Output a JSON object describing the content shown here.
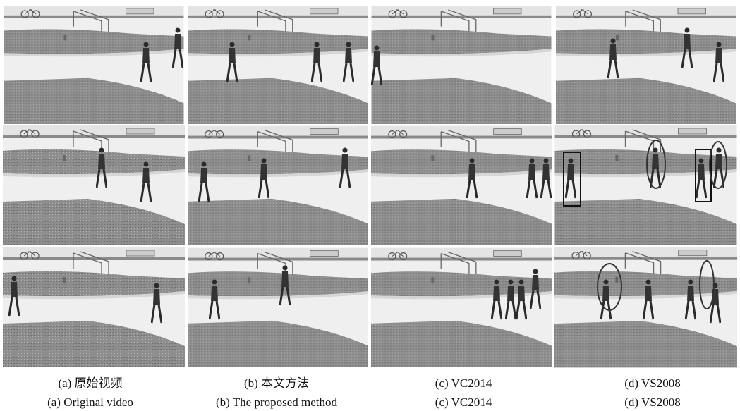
{
  "captions": [
    {
      "chinese": "(a) 原始视频",
      "english": "(a) Original video"
    },
    {
      "chinese": "(b) 本文方法",
      "english": "(b) The proposed method"
    },
    {
      "chinese": "(c) VC2014",
      "english": "(c) VC2014"
    },
    {
      "chinese": "(d) VS2008",
      "english": "(d) VS2008"
    }
  ]
}
